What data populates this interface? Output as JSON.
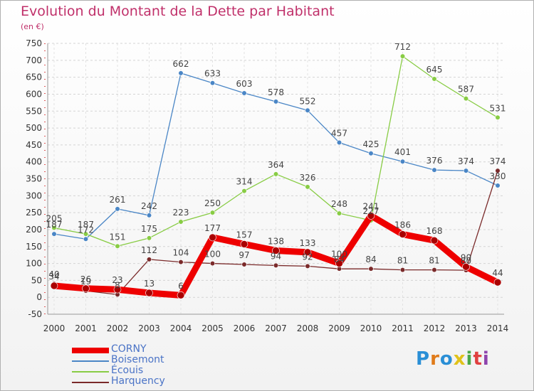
{
  "title": "Evolution du Montant de la Dette par Habitant",
  "subtitle": "(en €)",
  "logo": {
    "text": "Proxiti",
    "colors": [
      "#2a8fd6",
      "#e07b1a",
      "#2a8fd6",
      "#e0c21a",
      "#4aa84a",
      "#e04040",
      "#8e44ad"
    ]
  },
  "chart_data": {
    "type": "line",
    "x": [
      "2000",
      "2001",
      "2002",
      "2003",
      "2004",
      "2005",
      "2006",
      "2007",
      "2008",
      "2009",
      "2010",
      "2011",
      "2012",
      "2013",
      "2014"
    ],
    "ylim": [
      -50,
      750
    ],
    "yticks": [
      -50,
      0,
      50,
      100,
      150,
      200,
      250,
      300,
      350,
      400,
      450,
      500,
      550,
      600,
      650,
      700,
      750
    ],
    "grid": true,
    "legend_position": "bottom-left",
    "series": [
      {
        "name": "Boisemont",
        "color": "#4a86c6",
        "width": 1.3,
        "values": [
          187,
          172,
          261,
          242,
          662,
          633,
          603,
          578,
          552,
          457,
          425,
          401,
          376,
          374,
          330
        ],
        "labels": [
          "187",
          "172",
          "261",
          "242",
          "662",
          "633",
          "603",
          "578",
          "552",
          "457",
          "425",
          "401",
          "376",
          "374",
          "330"
        ]
      },
      {
        "name": "Écouis",
        "color": "#88cc44",
        "width": 1.3,
        "values": [
          205,
          187,
          151,
          175,
          223,
          250,
          314,
          364,
          326,
          248,
          227,
          712,
          645,
          587,
          531
        ],
        "labels": [
          "205",
          "187",
          "151",
          "175",
          "223",
          "250",
          "314",
          "364",
          "326",
          "248",
          "227",
          "712",
          "645",
          "587",
          "531"
        ]
      },
      {
        "name": "Harquency",
        "color": "#7a2a2a",
        "width": 1.3,
        "values": [
          40,
          19,
          8,
          112,
          104,
          100,
          97,
          94,
          92,
          84,
          84,
          81,
          81,
          80,
          374
        ],
        "labels": [
          "40",
          "19",
          "8",
          "112",
          "104",
          "100",
          "97",
          "94",
          "92",
          "84",
          "84",
          "81",
          "81",
          "80",
          "374"
        ]
      },
      {
        "name": "CORNY",
        "color": "#ee0000",
        "width": 9,
        "values": [
          34,
          26,
          23,
          13,
          6,
          177,
          157,
          138,
          133,
          100,
          241,
          186,
          168,
          90,
          44
        ],
        "labels": [
          "34",
          "26",
          "23",
          "13",
          "6",
          "177",
          "157",
          "138",
          "133",
          "100",
          "241",
          "186",
          "168",
          "90",
          "44"
        ]
      }
    ],
    "legend": [
      "CORNY",
      "Boisemont",
      "Écouis",
      "Harquency"
    ]
  }
}
